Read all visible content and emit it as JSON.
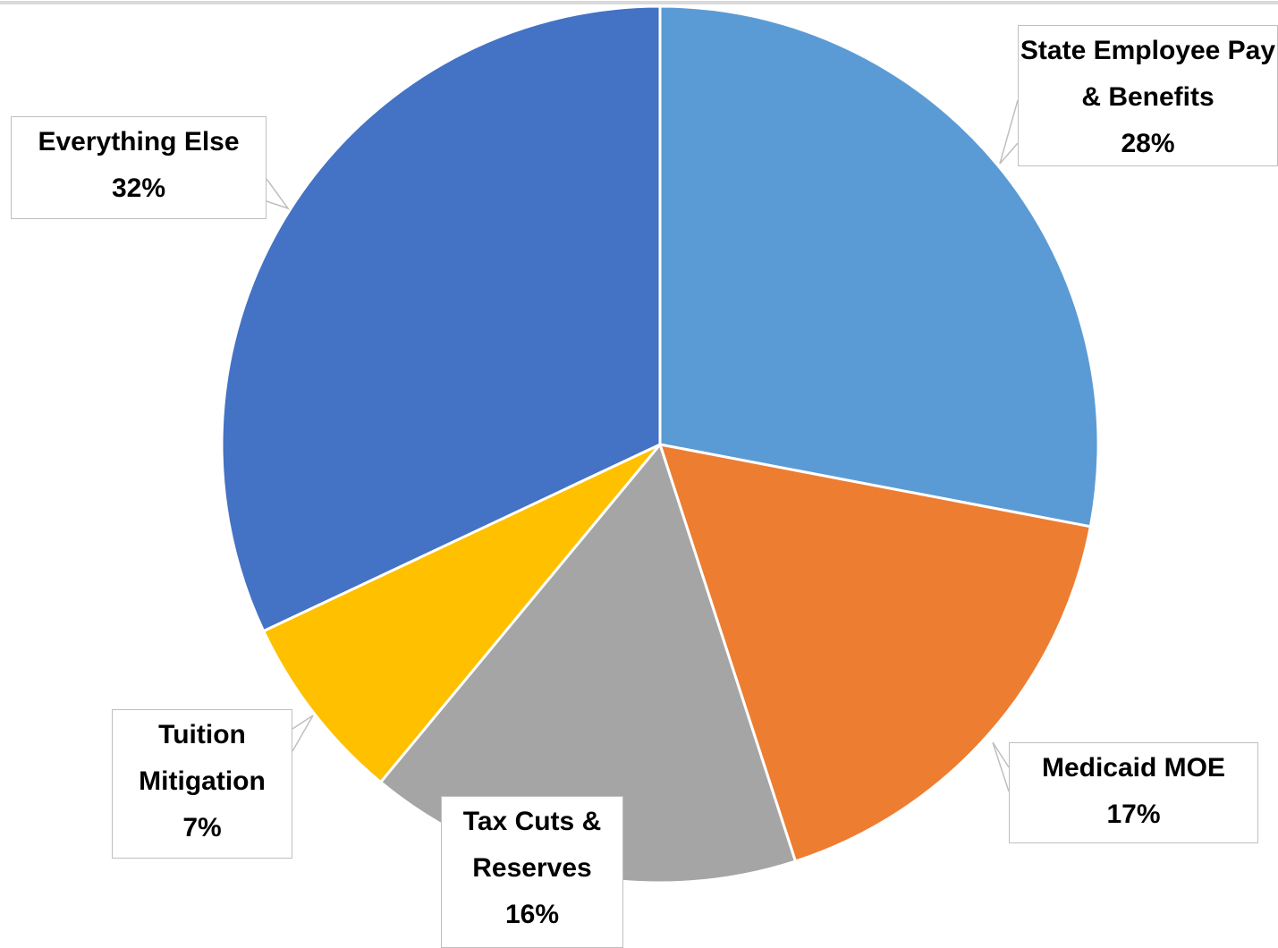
{
  "chart_data": {
    "type": "pie",
    "categories": [
      "State Employee Pay & Benefits",
      "Medicaid MOE",
      "Tax Cuts & Reserves",
      "Tuition Mitigation",
      "Everything Else"
    ],
    "values": [
      28,
      17,
      16,
      7,
      32
    ],
    "value_labels": [
      "28%",
      "17%",
      "16%",
      "7%",
      "32%"
    ],
    "colors": [
      "#5b9bd5",
      "#ed7d31",
      "#a5a5a5",
      "#ffc000",
      "#4472c4"
    ]
  }
}
